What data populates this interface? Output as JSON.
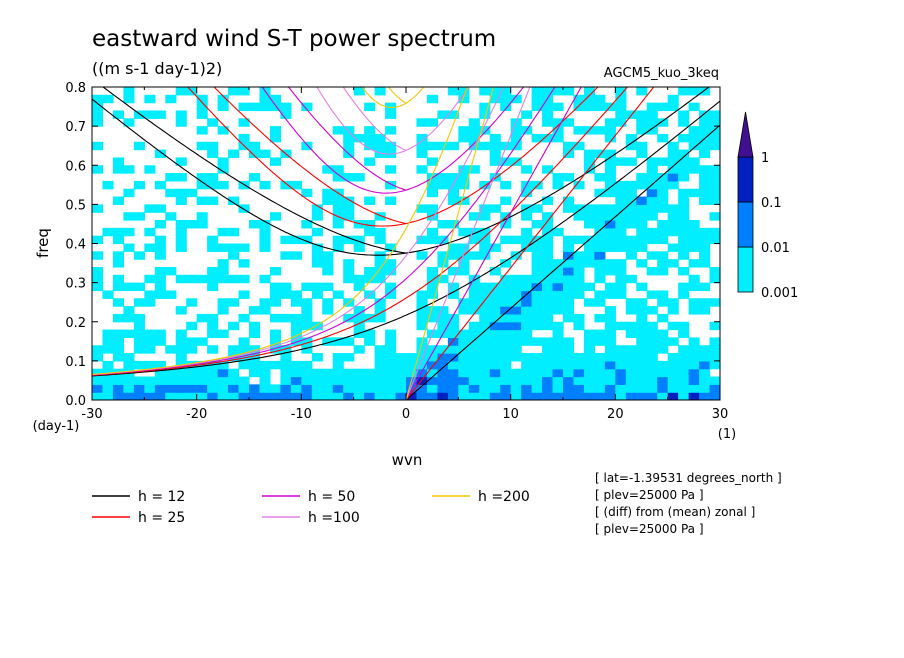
{
  "chart_data": {
    "type": "heatmap",
    "title": "eastward wind S-T power spectrum",
    "subtitle": "((m s-1 day-1)2)",
    "experiment": "AGCM5_kuo_3keq",
    "xlabel": "wvn",
    "ylabel": "freq",
    "x_unit": "(1)",
    "y_unit": "(day-1)",
    "xlim": [
      -30,
      30
    ],
    "ylim": [
      0,
      0.8
    ],
    "xticks": [
      -30,
      -20,
      -10,
      0,
      10,
      20,
      30
    ],
    "yticks": [
      0.0,
      0.1,
      0.2,
      0.3,
      0.4,
      0.5,
      0.6,
      0.7,
      0.8
    ],
    "colorbar": {
      "levels": [
        "0.001",
        "0.01",
        "0.1",
        "1"
      ],
      "colors": [
        "#ffffff",
        "#00eeff",
        "#0080ff",
        "#0020c0",
        "#401090"
      ]
    },
    "dispersion_curves": [
      {
        "label": "h = 12",
        "h": 12,
        "color": "#000000"
      },
      {
        "label": "h = 25",
        "h": 25,
        "color": "#ff0000"
      },
      {
        "label": "h = 50",
        "h": 50,
        "color": "#d000d0"
      },
      {
        "label": "h =100",
        "h": 100,
        "color": "#e080e0"
      },
      {
        "label": "h =200",
        "h": 200,
        "color": "#f0c800"
      }
    ],
    "info_lines": [
      "[ lat=-1.39531 degrees_north ]",
      "[ plev=25000 Pa ]",
      "[ (diff) from (mean) zonal ]",
      "[ plev=25000 Pa ]"
    ]
  }
}
